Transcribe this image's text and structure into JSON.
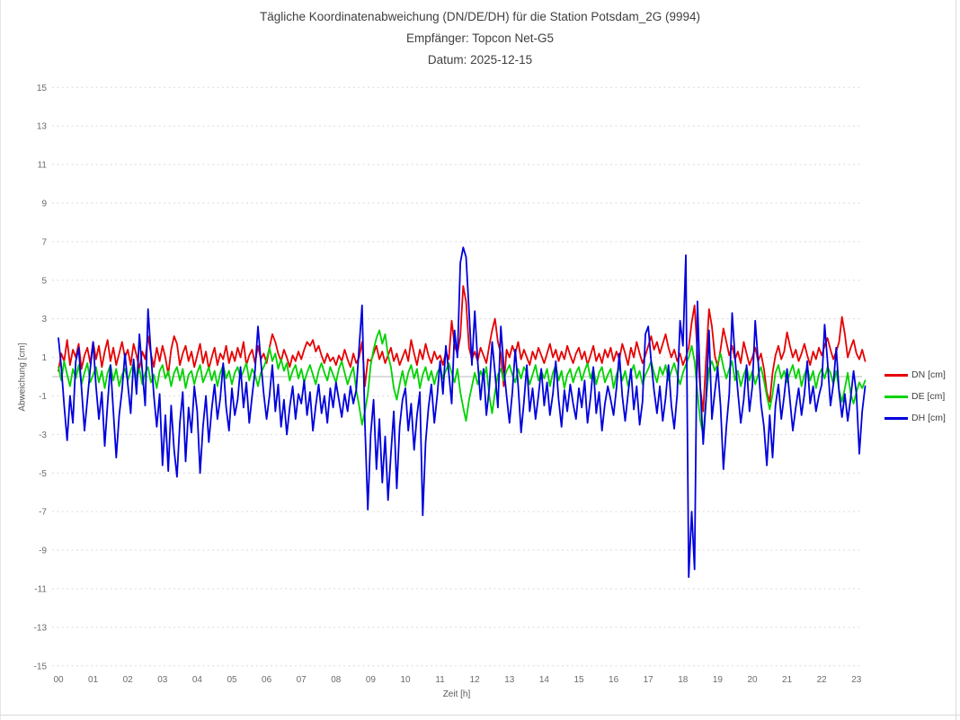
{
  "chart": {
    "title_line1": "Tägliche Koordinatenabweichung (DN/DE/DH) für die Station Potsdam_2G (9994)",
    "title_line2": "Empfänger: Topcon Net-G5",
    "title_line3": "Datum: 2025-12-15",
    "x_axis_label": "Zeit [h]",
    "y_axis_label": "Abweichung [cm]",
    "legend": [
      {
        "label": "DN [cm]",
        "color": "#e60000"
      },
      {
        "label": "DE [cm]",
        "color": "#00d200"
      },
      {
        "label": "DH [cm]",
        "color": "#0000dd"
      }
    ]
  },
  "panel": {
    "background": "#ffffff",
    "border_color": "#d9d9d9"
  },
  "chart_data": {
    "type": "line",
    "title": "Tägliche Koordinatenabweichung (DN/DE/DH) für die Station Potsdam_2G (9994)",
    "subtitle": [
      "Empfänger: Topcon Net-G5",
      "Datum: 2025-12-15"
    ],
    "xlabel": "Zeit [h]",
    "ylabel": "Abweichung [cm]",
    "xlim": [
      0,
      23.25
    ],
    "ylim": [
      -15,
      15
    ],
    "x_ticks": [
      "00",
      "01",
      "02",
      "03",
      "04",
      "05",
      "06",
      "07",
      "08",
      "09",
      "10",
      "11",
      "12",
      "13",
      "14",
      "15",
      "16",
      "17",
      "18",
      "19",
      "20",
      "21",
      "22",
      "23"
    ],
    "y_ticks": [
      15,
      13,
      11,
      9,
      7,
      5,
      3,
      1,
      -1,
      -3,
      -5,
      -7,
      -9,
      -11,
      -13,
      -15
    ],
    "grid": "horizontal dashed lines at labeled ticks, solid light line at 0, no vertical gridlines",
    "legend_position": "right",
    "sample_interval_minutes": 5,
    "x_start_hour": 0,
    "series": [
      {
        "name": "DN [cm]",
        "color": "#e60000",
        "values": [
          0.3,
          1.2,
          0.8,
          1.9,
          0.6,
          1.4,
          1.0,
          1.7,
          0.4,
          1.1,
          1.5,
          0.7,
          1.8,
          0.9,
          1.6,
          0.5,
          1.3,
          1.9,
          0.8,
          1.5,
          0.6,
          1.2,
          1.8,
          1.0,
          1.4,
          0.6,
          1.7,
          1.1,
          0.4,
          1.3,
          0.9,
          2.1,
          1.2,
          0.5,
          1.5,
          0.8,
          1.6,
          1.0,
          0.1,
          1.4,
          2.1,
          1.7,
          0.6,
          1.2,
          1.6,
          0.8,
          1.3,
          0.5,
          1.1,
          1.7,
          0.7,
          1.3,
          0.4,
          1.0,
          1.5,
          0.6,
          1.2,
          0.9,
          1.6,
          0.7,
          1.3,
          0.8,
          1.5,
          1.0,
          1.8,
          0.6,
          1.1,
          1.4,
          0.7,
          1.6,
          0.9,
          1.2,
          0.7,
          1.5,
          2.2,
          1.8,
          1.2,
          0.8,
          1.4,
          1.0,
          0.5,
          1.1,
          0.8,
          1.3,
          0.9,
          1.4,
          1.8,
          1.6,
          1.9,
          1.3,
          1.6,
          1.1,
          0.7,
          1.2,
          0.8,
          1.0,
          0.6,
          1.1,
          0.8,
          1.4,
          0.9,
          0.5,
          1.2,
          0.7,
          1.0,
          1.8,
          -0.5,
          0.9,
          0.8,
          1.2,
          1.6,
          0.9,
          1.3,
          0.7,
          1.1,
          1.5,
          0.8,
          1.2,
          0.6,
          1.0,
          1.4,
          0.8,
          1.9,
          1.2,
          0.6,
          1.4,
          0.9,
          1.7,
          1.1,
          0.7,
          1.3,
          0.9,
          1.1,
          0.6,
          1.3,
          0.9,
          2.9,
          1.6,
          1.2,
          2.1,
          4.7,
          3.9,
          1.5,
          0.9,
          1.3,
          0.8,
          1.5,
          1.1,
          0.7,
          1.6,
          2.4,
          3.0,
          1.8,
          1.2,
          -0.5,
          1.4,
          1.0,
          1.6,
          1.2,
          1.8,
          0.9,
          1.4,
          1.0,
          0.6,
          1.3,
          0.9,
          1.5,
          1.1,
          0.7,
          1.2,
          1.7,
          1.0,
          1.4,
          0.8,
          1.3,
          0.9,
          1.6,
          1.1,
          0.7,
          1.2,
          1.5,
          0.9,
          1.3,
          0.6,
          1.1,
          1.6,
          0.8,
          1.2,
          0.7,
          1.4,
          1.0,
          1.5,
          0.8,
          1.3,
          0.9,
          1.7,
          1.2,
          0.6,
          1.5,
          1.0,
          1.8,
          1.2,
          0.7,
          1.1,
          1.6,
          2.1,
          1.4,
          1.8,
          1.2,
          1.7,
          2.2,
          1.5,
          1.0,
          1.4,
          0.8,
          1.2,
          0.6,
          1.0,
          1.5,
          2.8,
          3.7,
          1.2,
          -0.6,
          -1.8,
          0.9,
          3.5,
          2.6,
          1.1,
          0.5,
          1.4,
          2.5,
          1.8,
          1.1,
          1.6,
          0.9,
          1.3,
          0.7,
          1.8,
          1.2,
          0.6,
          1.0,
          1.5,
          0.8,
          1.2,
          0.4,
          -0.8,
          -1.3,
          0.2,
          1.1,
          1.6,
          0.9,
          1.3,
          2.3,
          1.6,
          1.0,
          1.4,
          0.8,
          1.2,
          1.7,
          1.1,
          0.6,
          1.3,
          0.9,
          1.5,
          1.1,
          1.6,
          2.0,
          1.4,
          0.9,
          1.3,
          1.8,
          3.1,
          2.2,
          1.0,
          1.5,
          1.9,
          1.2,
          0.9,
          1.4,
          0.8
        ]
      },
      {
        "name": "DE [cm]",
        "color": "#00d200",
        "values": [
          0.5,
          -0.2,
          0.8,
          0.1,
          -0.5,
          0.4,
          -0.1,
          0.6,
          -0.4,
          0.2,
          0.7,
          -0.3,
          0.1,
          0.5,
          -0.3,
          0.3,
          -0.6,
          0.2,
          0.6,
          -0.2,
          0.4,
          -0.5,
          0.1,
          0.4,
          -0.2,
          0.3,
          0.7,
          -0.1,
          0.4,
          -0.4,
          0.2,
          0.5,
          -0.3,
          0.1,
          -0.6,
          0.3,
          0.6,
          -0.1,
          0.3,
          -0.5,
          0.2,
          0.5,
          -0.2,
          0.4,
          -0.6,
          0.1,
          0.3,
          -0.4,
          0.2,
          0.6,
          -0.3,
          0.1,
          0.5,
          -0.2,
          0.3,
          -0.5,
          0.2,
          0.6,
          -0.1,
          0.3,
          -0.4,
          0.2,
          0.5,
          -0.1,
          0.3,
          0.7,
          -0.2,
          0.4,
          0.1,
          -0.5,
          0.2,
          0.5,
          0.9,
          1.5,
          0.8,
          1.2,
          0.4,
          0.9,
          0.3,
          0.7,
          -0.2,
          0.3,
          0.6,
          -0.1,
          0.4,
          -0.3,
          0.2,
          0.6,
          0.1,
          -0.4,
          0.3,
          0.7,
          0.2,
          -0.2,
          0.5,
          0.1,
          -0.3,
          0.4,
          0.8,
          0.2,
          -0.4,
          0.1,
          0.5,
          -0.7,
          -1.5,
          -2.5,
          -1.8,
          -0.9,
          0.6,
          1.4,
          2.0,
          2.4,
          1.7,
          2.2,
          1.1,
          0.5,
          -0.6,
          -1.2,
          -0.4,
          0.3,
          -0.5,
          0.2,
          0.6,
          -0.1,
          0.4,
          -0.6,
          0.1,
          0.5,
          -0.2,
          0.3,
          -0.4,
          0.2,
          0.5,
          -0.1,
          0.3,
          0.7,
          0.2,
          -0.3,
          0.4,
          -0.8,
          -1.6,
          -2.3,
          -1.2,
          -0.5,
          0.2,
          -0.4,
          0.3,
          -0.1,
          0.5,
          -1.0,
          -1.9,
          -0.8,
          0.1,
          0.4,
          -0.2,
          0.3,
          0.6,
          0.1,
          -0.3,
          0.4,
          -0.1,
          0.5,
          0.2,
          -0.4,
          0.1,
          0.6,
          -0.2,
          0.3,
          -0.1,
          0.4,
          -0.5,
          0.2,
          0.6,
          -0.2,
          0.3,
          -0.6,
          0.1,
          0.4,
          -0.3,
          0.2,
          0.5,
          -0.2,
          0.3,
          0.7,
          -0.1,
          0.4,
          -0.4,
          0.2,
          0.5,
          -0.3,
          0.1,
          0.4,
          -0.6,
          0.1,
          0.5,
          -0.2,
          0.3,
          -0.5,
          0.2,
          0.6,
          -0.1,
          0.3,
          -0.4,
          0.1,
          0.4,
          0.8,
          0.2,
          -0.3,
          0.5,
          0.1,
          0.6,
          -0.2,
          0.3,
          0.7,
          0.1,
          -0.4,
          0.2,
          0.6,
          1.0,
          1.6,
          0.8,
          -0.8,
          -2.3,
          -3.0,
          -1.2,
          0.4,
          0.8,
          0.3,
          0.7,
          1.2,
          0.5,
          -0.1,
          0.4,
          0.8,
          -0.2,
          0.3,
          -0.5,
          0.1,
          0.5,
          -0.2,
          0.3,
          -0.4,
          0.1,
          0.5,
          -0.2,
          -1.0,
          -1.7,
          -0.9,
          0.2,
          0.6,
          -0.1,
          0.3,
          -0.3,
          0.2,
          0.6,
          -0.1,
          0.4,
          -0.5,
          0.1,
          0.5,
          -0.2,
          0.3,
          -0.6,
          0.1,
          0.4,
          -0.1,
          0.5,
          0.2,
          -0.4,
          0.3,
          -0.7,
          -1.3,
          -0.6,
          0.2,
          -0.9,
          -1.4,
          -0.8,
          -0.3,
          -0.6,
          -0.2
        ]
      },
      {
        "name": "DH [cm]",
        "color": "#0000dd",
        "values": [
          2.0,
          0.5,
          -1.5,
          -3.3,
          -1.0,
          -2.4,
          0.8,
          1.5,
          -0.6,
          -2.8,
          -1.2,
          0.4,
          1.8,
          -0.5,
          -2.2,
          -0.8,
          -3.6,
          -1.4,
          0.6,
          -1.8,
          -4.2,
          -2.0,
          -0.7,
          1.2,
          -0.4,
          -1.9,
          0.9,
          -0.9,
          2.2,
          0.3,
          -1.5,
          3.5,
          1.2,
          -1.0,
          -2.6,
          -0.9,
          -4.6,
          -2.0,
          -4.9,
          -1.5,
          -3.8,
          -5.2,
          -2.4,
          -0.8,
          -4.4,
          -1.6,
          -2.9,
          -0.5,
          -1.8,
          -5.0,
          -2.6,
          -1.0,
          -3.4,
          -1.7,
          -0.4,
          -2.2,
          -1.1,
          0.7,
          -1.6,
          -2.8,
          -0.6,
          -2.0,
          -1.2,
          0.5,
          -1.6,
          -0.3,
          -2.4,
          -1.0,
          0.3,
          2.6,
          0.8,
          -0.9,
          -2.2,
          -1.0,
          0.6,
          -1.8,
          -0.4,
          -2.6,
          -1.2,
          -3.0,
          -1.6,
          -0.5,
          -2.2,
          -0.9,
          -1.4,
          -0.2,
          -2.0,
          -0.8,
          -2.8,
          -1.5,
          -0.4,
          -1.9,
          -1.0,
          -2.4,
          -0.6,
          -1.6,
          -0.3,
          -1.2,
          -2.1,
          -0.9,
          -1.8,
          -0.5,
          -1.4,
          -0.7,
          1.5,
          3.7,
          -2.5,
          -6.9,
          -3.0,
          -1.2,
          -4.8,
          -2.2,
          -5.5,
          -3.1,
          -6.4,
          -4.0,
          -1.8,
          -5.8,
          -2.6,
          -1.2,
          -0.6,
          -2.8,
          -1.4,
          -3.8,
          -2.0,
          -0.8,
          -7.2,
          -3.4,
          -1.6,
          -0.4,
          -2.4,
          -1.0,
          0.8,
          -0.9,
          1.6,
          0.2,
          -1.4,
          2.4,
          1.0,
          5.9,
          6.7,
          6.2,
          3.4,
          0.6,
          3.4,
          0.8,
          -1.2,
          0.4,
          -2.0,
          -0.6,
          1.8,
          0.2,
          -1.6,
          2.6,
          0.5,
          -1.0,
          -2.4,
          -0.8,
          1.4,
          -0.5,
          -2.9,
          -1.3,
          0.6,
          -1.8,
          -0.6,
          -2.2,
          -1.0,
          0.4,
          -1.5,
          -0.3,
          -2.0,
          -0.9,
          0.8,
          -1.2,
          -2.6,
          -0.7,
          -1.8,
          -0.4,
          -1.4,
          -2.2,
          -0.6,
          -1.6,
          -0.2,
          -2.4,
          -1.1,
          0.5,
          -1.9,
          -0.8,
          -2.8,
          -1.4,
          -0.5,
          -1.2,
          -2.0,
          -0.6,
          1.2,
          -1.0,
          -2.3,
          -0.9,
          0.4,
          -1.7,
          -0.5,
          -2.5,
          -1.3,
          2.2,
          2.6,
          0.8,
          -0.7,
          -1.9,
          -0.5,
          -2.3,
          -1.1,
          0.6,
          -1.5,
          -2.7,
          -0.9,
          2.9,
          1.6,
          6.3,
          -10.4,
          -7.0,
          -10.0,
          3.9,
          -0.6,
          -3.5,
          -1.2,
          2.4,
          -2.2,
          -0.8,
          0.5,
          -1.5,
          -4.8,
          -2.6,
          -0.9,
          3.3,
          1.0,
          -0.8,
          -2.4,
          -1.2,
          0.6,
          -1.8,
          -0.5,
          2.9,
          0.8,
          -1.4,
          -2.6,
          -4.6,
          -2.0,
          -4.2,
          -1.5,
          -0.4,
          -2.2,
          -1.0,
          0.4,
          -1.2,
          -2.8,
          -1.6,
          -0.6,
          -2.0,
          -0.9,
          0.8,
          -1.4,
          -0.5,
          -1.8,
          -1.0,
          -0.4,
          2.7,
          0.8,
          -1.5,
          -0.4,
          1.5,
          -0.8,
          -2.1,
          -0.9,
          -2.3,
          -1.1,
          0.3,
          -0.9,
          -4.0,
          -1.8,
          -0.5
        ]
      }
    ]
  }
}
